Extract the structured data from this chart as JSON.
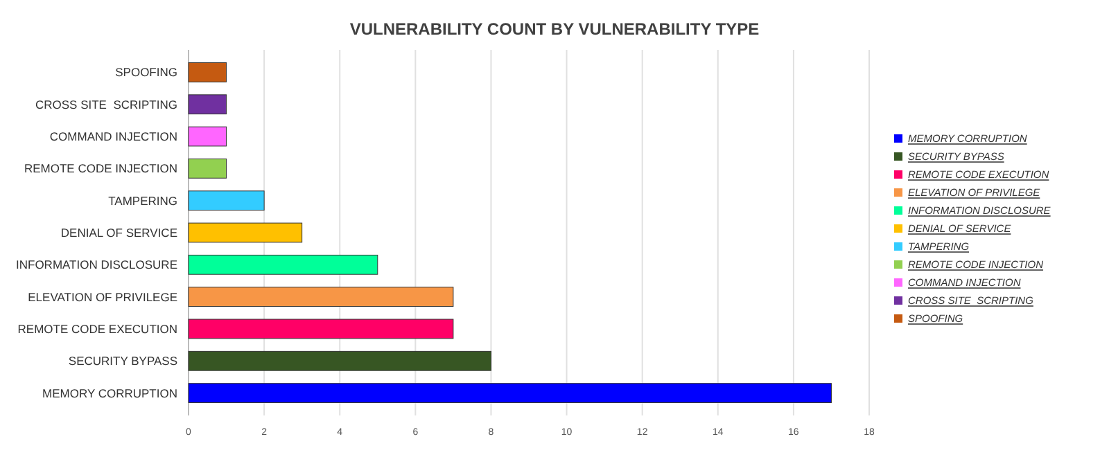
{
  "chart_data": {
    "type": "bar",
    "orientation": "horizontal",
    "title": "VULNERABILITY COUNT BY VULNERABILITY TYPE",
    "categories": [
      "SPOOFING",
      "CROSS SITE  SCRIPTING",
      "COMMAND INJECTION",
      "REMOTE CODE INJECTION",
      "TAMPERING",
      "DENIAL OF SERVICE",
      "INFORMATION DISCLOSURE",
      "ELEVATION OF PRIVILEGE",
      "REMOTE CODE EXECUTION",
      "SECURITY BYPASS",
      "MEMORY CORRUPTION"
    ],
    "series": [
      {
        "name": "MEMORY CORRUPTION",
        "color": "#0000ff",
        "values": [
          null,
          null,
          null,
          null,
          null,
          null,
          null,
          null,
          null,
          null,
          17
        ]
      },
      {
        "name": "SECURITY BYPASS",
        "color": "#375623",
        "values": [
          null,
          null,
          null,
          null,
          null,
          null,
          null,
          null,
          null,
          8,
          null
        ]
      },
      {
        "name": "REMOTE CODE EXECUTION",
        "color": "#ff0066",
        "values": [
          null,
          null,
          null,
          null,
          null,
          null,
          null,
          null,
          7,
          null,
          null
        ]
      },
      {
        "name": "ELEVATION OF PRIVILEGE",
        "color": "#f79646",
        "values": [
          null,
          null,
          null,
          null,
          null,
          null,
          null,
          7,
          null,
          null,
          null
        ]
      },
      {
        "name": "INFORMATION DISCLOSURE",
        "color": "#00ff99",
        "values": [
          null,
          null,
          null,
          null,
          null,
          null,
          5,
          null,
          null,
          null,
          null
        ]
      },
      {
        "name": "DENIAL OF SERVICE",
        "color": "#ffc000",
        "values": [
          null,
          null,
          null,
          null,
          null,
          3,
          null,
          null,
          null,
          null,
          null
        ]
      },
      {
        "name": "TAMPERING",
        "color": "#33ccff",
        "values": [
          null,
          null,
          null,
          null,
          2,
          null,
          null,
          null,
          null,
          null,
          null
        ]
      },
      {
        "name": "REMOTE CODE INJECTION",
        "color": "#92d050",
        "values": [
          null,
          null,
          null,
          1,
          null,
          null,
          null,
          null,
          null,
          null,
          null
        ]
      },
      {
        "name": "COMMAND INJECTION",
        "color": "#ff66ff",
        "values": [
          null,
          null,
          1,
          null,
          null,
          null,
          null,
          null,
          null,
          null,
          null
        ]
      },
      {
        "name": "CROSS SITE  SCRIPTING",
        "color": "#7030a0",
        "values": [
          null,
          1,
          null,
          null,
          null,
          null,
          null,
          null,
          null,
          null,
          null
        ]
      },
      {
        "name": "SPOOFING",
        "color": "#c55a11",
        "values": [
          1,
          null,
          null,
          null,
          null,
          null,
          null,
          null,
          null,
          null,
          null
        ]
      }
    ],
    "xlim": [
      0,
      18
    ],
    "xticks": [
      0,
      2,
      4,
      6,
      8,
      10,
      12,
      14,
      16,
      18
    ],
    "grid": "x",
    "legend": "right"
  }
}
